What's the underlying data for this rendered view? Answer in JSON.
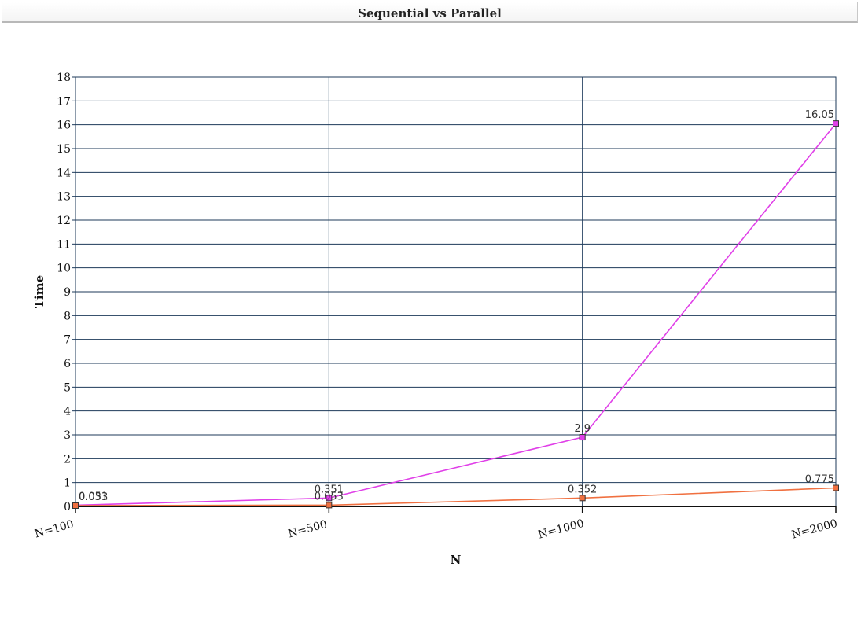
{
  "chart_data": {
    "type": "line",
    "title": "Sequential vs Parallel",
    "xlabel": "N",
    "ylabel": "Time",
    "categories": [
      "N=100",
      "N=500",
      "N=1000",
      "N=2000"
    ],
    "ylim": [
      0,
      18
    ],
    "yticks": [
      0,
      1,
      2,
      3,
      4,
      5,
      6,
      7,
      8,
      9,
      10,
      11,
      12,
      13,
      14,
      15,
      16,
      17,
      18
    ],
    "grid": true,
    "legend": "none",
    "series": [
      {
        "color": "#e040e8",
        "values": [
          0.051,
          0.351,
          2.9,
          16.05
        ],
        "labels": [
          "0.051",
          "0.351",
          "2.9",
          "16.05"
        ]
      },
      {
        "color": "#f07040",
        "values": [
          0.033,
          0.053,
          0.352,
          0.775
        ],
        "labels": [
          "0.033",
          "0.053",
          "0.352",
          "0.775"
        ]
      }
    ]
  }
}
